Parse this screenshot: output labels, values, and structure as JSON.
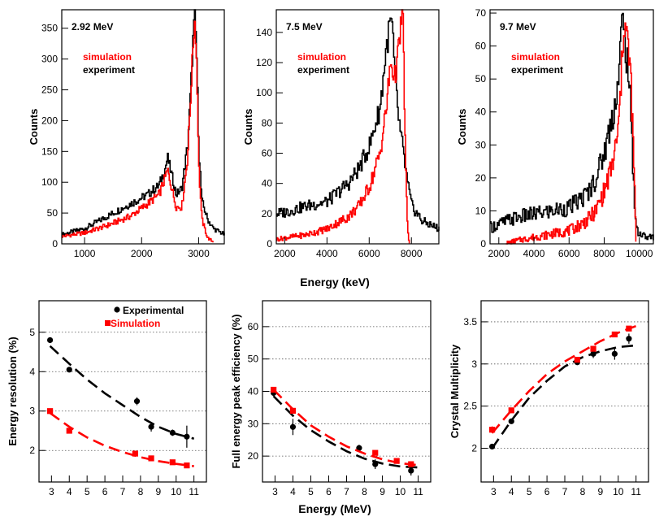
{
  "figure": {
    "top_xlabel": "Energy (keV)",
    "bottom_xlabel": "Energy (MeV)"
  },
  "colors": {
    "simulation": "#ff0000",
    "experiment": "#000000"
  },
  "chart_data": [
    {
      "type": "line",
      "energy_label": "2.92 MeV",
      "ylabel": "Counts",
      "xlim": [
        600,
        3450
      ],
      "ylim": [
        0,
        380
      ],
      "xticks": [
        1000,
        2000,
        3000
      ],
      "yticks": [
        0,
        50,
        100,
        150,
        200,
        250,
        300,
        350
      ],
      "legend": {
        "simulation": "simulation",
        "experiment": "experiment"
      },
      "series": [
        {
          "key": "experiment",
          "color": "#000000",
          "x": [
            600,
            1000,
            1400,
            1800,
            2100,
            2300,
            2400,
            2450,
            2500,
            2600,
            2700,
            2800,
            2850,
            2900,
            2930,
            2960,
            3000,
            3050,
            3150,
            3250,
            3450
          ],
          "y": [
            15,
            25,
            45,
            65,
            80,
            95,
            120,
            140,
            120,
            80,
            90,
            160,
            240,
            340,
            375,
            300,
            150,
            70,
            40,
            25,
            15
          ]
        },
        {
          "key": "simulation",
          "color": "#ff0000",
          "x": [
            600,
            1000,
            1400,
            1800,
            2100,
            2300,
            2400,
            2450,
            2500,
            2600,
            2700,
            2800,
            2850,
            2900,
            2930,
            2960,
            3000,
            3050,
            3150,
            3250
          ],
          "y": [
            12,
            18,
            30,
            45,
            65,
            80,
            105,
            120,
            100,
            60,
            60,
            140,
            230,
            330,
            365,
            290,
            120,
            40,
            10,
            3
          ]
        }
      ]
    },
    {
      "type": "line",
      "energy_label": "7.5 MeV",
      "ylabel": "Counts",
      "xlim": [
        1600,
        9300
      ],
      "ylim": [
        0,
        155
      ],
      "xticks": [
        2000,
        4000,
        6000,
        8000
      ],
      "yticks": [
        0,
        20,
        40,
        60,
        80,
        100,
        120,
        140
      ],
      "legend": {
        "simulation": "simulation",
        "experiment": "experiment"
      },
      "series": [
        {
          "key": "experiment",
          "color": "#000000",
          "x": [
            1600,
            2000,
            3000,
            4000,
            5000,
            5500,
            6000,
            6500,
            6800,
            7000,
            7100,
            7200,
            7400,
            7600,
            7800,
            8000,
            8500,
            9300
          ],
          "y": [
            20,
            21,
            25,
            28,
            40,
            50,
            65,
            90,
            130,
            148,
            140,
            110,
            80,
            60,
            40,
            25,
            15,
            10
          ]
        },
        {
          "key": "simulation",
          "color": "#ff0000",
          "x": [
            1600,
            2000,
            3000,
            4000,
            5000,
            5500,
            6000,
            6500,
            6800,
            7000,
            7200,
            7400,
            7550,
            7600,
            7700,
            7800,
            7900
          ],
          "y": [
            3,
            4,
            6,
            10,
            18,
            25,
            38,
            60,
            90,
            120,
            110,
            130,
            155,
            140,
            60,
            10,
            0
          ]
        }
      ]
    },
    {
      "type": "line",
      "energy_label": "9.7 MeV",
      "ylabel": "Counts",
      "xlim": [
        1500,
        10800
      ],
      "ylim": [
        0,
        71
      ],
      "xticks": [
        2000,
        4000,
        6000,
        8000,
        10000
      ],
      "yticks": [
        0,
        10,
        20,
        30,
        40,
        50,
        60,
        70
      ],
      "legend": {
        "simulation": "simulation",
        "experiment": "experiment"
      },
      "series": [
        {
          "key": "experiment",
          "color": "#000000",
          "x": [
            1500,
            2000,
            3000,
            4000,
            5000,
            6000,
            7000,
            7500,
            8000,
            8500,
            8800,
            9000,
            9200,
            9400,
            9600,
            9800,
            10000,
            10400,
            10800
          ],
          "y": [
            5,
            6,
            8,
            9,
            10,
            11,
            15,
            20,
            28,
            40,
            50,
            68,
            60,
            50,
            25,
            5,
            3,
            2,
            2
          ]
        },
        {
          "key": "simulation",
          "color": "#ff0000",
          "x": [
            2400,
            3000,
            4000,
            5000,
            6000,
            7000,
            7500,
            8000,
            8500,
            8800,
            9000,
            9100,
            9300,
            9500,
            9700,
            9800
          ],
          "y": [
            0,
            1,
            2,
            3,
            4,
            7,
            10,
            16,
            25,
            35,
            55,
            68,
            62,
            50,
            20,
            0
          ]
        }
      ]
    },
    {
      "type": "scatter",
      "ylabel": "Energy resolution (%)",
      "xlim": [
        2.3,
        11.7
      ],
      "ylim": [
        1.2,
        5.8
      ],
      "xticks": [
        3,
        4,
        5,
        6,
        7,
        8,
        9,
        10,
        11
      ],
      "yticks": [
        2,
        3,
        4,
        5
      ],
      "grid_y": true,
      "legend": {
        "experimental": "Experimental",
        "simulation": "Simulation"
      },
      "series": [
        {
          "key": "experimental",
          "color": "#000000",
          "marker": "circle",
          "x": [
            2.92,
            4.0,
            7.8,
            8.6,
            9.8,
            10.6
          ],
          "y": [
            4.8,
            4.05,
            3.25,
            2.6,
            2.45,
            2.35
          ],
          "err": [
            0.06,
            0.06,
            0.1,
            0.12,
            0.08,
            0.28
          ],
          "fit_x": [
            2.92,
            4,
            5,
            6,
            7,
            8,
            9,
            10,
            11
          ],
          "fit_y": [
            4.65,
            4.2,
            3.8,
            3.45,
            3.15,
            2.85,
            2.6,
            2.42,
            2.3
          ]
        },
        {
          "key": "simulation",
          "color": "#ff0000",
          "marker": "square",
          "x": [
            2.92,
            4.0,
            7.7,
            8.6,
            9.8,
            10.6
          ],
          "y": [
            3.0,
            2.5,
            1.92,
            1.8,
            1.7,
            1.62
          ],
          "err": [
            0,
            0,
            0,
            0,
            0,
            0
          ],
          "fit_x": [
            2.92,
            4,
            5,
            6,
            7,
            8,
            9,
            10,
            11
          ],
          "fit_y": [
            2.95,
            2.6,
            2.33,
            2.12,
            1.96,
            1.83,
            1.73,
            1.66,
            1.6
          ]
        }
      ]
    },
    {
      "type": "scatter",
      "ylabel": "Full energy peak efficiency (%)",
      "xlim": [
        2.3,
        11.7
      ],
      "ylim": [
        12,
        68
      ],
      "xticks": [
        3,
        4,
        5,
        6,
        7,
        8,
        9,
        10,
        11
      ],
      "yticks": [
        20,
        30,
        40,
        50,
        60
      ],
      "grid_y": true,
      "series": [
        {
          "key": "experimental",
          "color": "#000000",
          "marker": "circle",
          "x": [
            2.92,
            4.0,
            7.7,
            8.6,
            10.6
          ],
          "y": [
            39.5,
            29,
            22.5,
            17.5,
            15.5
          ],
          "err": [
            1.0,
            2.5,
            1.0,
            1.5,
            1.5
          ],
          "fit_x": [
            2.92,
            4,
            5,
            6,
            7,
            8,
            9,
            10,
            11
          ],
          "fit_y": [
            38.5,
            32.5,
            28.0,
            24.5,
            21.5,
            19.2,
            17.7,
            16.8,
            16.5
          ]
        },
        {
          "key": "simulation",
          "color": "#ff0000",
          "marker": "square",
          "x": [
            2.92,
            4.0,
            8.6,
            9.8,
            10.6
          ],
          "y": [
            40.5,
            34,
            21,
            18.5,
            17.5
          ],
          "err": [
            0,
            0,
            0,
            0,
            0
          ],
          "fit_x": [
            2.92,
            4,
            5,
            6,
            7,
            8,
            9,
            10,
            11
          ],
          "fit_y": [
            40.5,
            34.5,
            29.5,
            26.0,
            23.0,
            20.8,
            19.0,
            17.8,
            17.2
          ]
        }
      ]
    },
    {
      "type": "scatter",
      "ylabel": "Crystal Multiplicity",
      "xlim": [
        2.3,
        11.7
      ],
      "ylim": [
        1.6,
        3.75
      ],
      "xticks": [
        3,
        4,
        5,
        6,
        7,
        8,
        9,
        10,
        11
      ],
      "yticks": [
        2,
        2.5,
        3,
        3.5
      ],
      "grid_y": true,
      "series": [
        {
          "key": "experimental",
          "color": "#000000",
          "marker": "circle",
          "x": [
            2.92,
            4.0,
            7.7,
            8.6,
            9.8,
            10.6
          ],
          "y": [
            2.02,
            2.32,
            3.02,
            3.12,
            3.12,
            3.3
          ],
          "err": [
            0.02,
            0.03,
            0.03,
            0.05,
            0.07,
            0.06
          ],
          "fit_x": [
            2.92,
            4,
            5,
            6,
            7,
            8,
            9,
            10,
            11
          ],
          "fit_y": [
            2.0,
            2.33,
            2.6,
            2.8,
            2.97,
            3.08,
            3.15,
            3.2,
            3.22
          ]
        },
        {
          "key": "simulation",
          "color": "#ff0000",
          "marker": "square",
          "x": [
            2.92,
            4.0,
            7.7,
            8.6,
            9.8,
            10.6
          ],
          "y": [
            2.22,
            2.45,
            3.05,
            3.18,
            3.35,
            3.42
          ],
          "err": [
            0.04,
            0,
            0,
            0,
            0,
            0
          ],
          "fit_x": [
            2.92,
            4,
            5,
            6,
            7,
            8,
            9,
            10,
            11
          ],
          "fit_y": [
            2.18,
            2.45,
            2.68,
            2.88,
            3.03,
            3.15,
            3.27,
            3.37,
            3.45
          ]
        }
      ]
    }
  ]
}
